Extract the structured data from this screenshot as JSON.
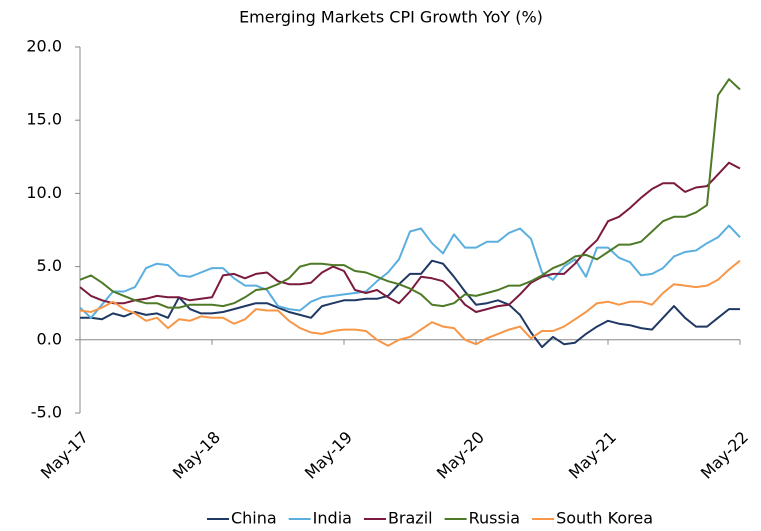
{
  "chart_data": {
    "type": "line",
    "title": "Emerging Markets CPI Growth YoY (%)",
    "categories": [
      "May-17",
      null,
      null,
      null,
      null,
      null,
      null,
      null,
      null,
      null,
      null,
      null,
      "May-18",
      null,
      null,
      null,
      null,
      null,
      null,
      null,
      null,
      null,
      null,
      null,
      "May-19",
      null,
      null,
      null,
      null,
      null,
      null,
      null,
      null,
      null,
      null,
      null,
      "May-20",
      null,
      null,
      null,
      null,
      null,
      null,
      null,
      null,
      null,
      null,
      null,
      "May-21",
      null,
      null,
      null,
      null,
      null,
      null,
      null,
      null,
      null,
      null,
      null,
      "May-22"
    ],
    "series": [
      {
        "name": "China",
        "color": "#1f3864",
        "values": [
          1.5,
          1.5,
          1.4,
          1.8,
          1.6,
          1.9,
          1.7,
          1.8,
          1.5,
          2.9,
          2.1,
          1.8,
          1.8,
          1.9,
          2.1,
          2.3,
          2.5,
          2.5,
          2.2,
          1.9,
          1.7,
          1.5,
          2.3,
          2.5,
          2.7,
          2.7,
          2.8,
          2.8,
          3.0,
          3.8,
          4.5,
          4.5,
          5.4,
          5.2,
          4.3,
          3.3,
          2.4,
          2.5,
          2.7,
          2.4,
          1.7,
          0.5,
          -0.5,
          0.2,
          -0.3,
          -0.2,
          0.4,
          0.9,
          1.3,
          1.1,
          1.0,
          0.8,
          0.7,
          1.5,
          2.3,
          1.5,
          0.9,
          0.9,
          1.5,
          2.1,
          2.1
        ]
      },
      {
        "name": "India",
        "color": "#5bafe0",
        "values": [
          2.2,
          1.5,
          2.4,
          3.3,
          3.3,
          3.6,
          4.9,
          5.2,
          5.1,
          4.4,
          4.3,
          4.6,
          4.9,
          4.9,
          4.2,
          3.7,
          3.7,
          3.4,
          2.3,
          2.1,
          2.0,
          2.6,
          2.9,
          3.0,
          3.1,
          3.2,
          3.3,
          4.0,
          4.6,
          5.5,
          7.4,
          7.6,
          6.6,
          5.9,
          7.2,
          6.3,
          6.3,
          6.7,
          6.7,
          7.3,
          7.6,
          6.9,
          4.6,
          4.1,
          5.0,
          5.5,
          4.3,
          6.3,
          6.3,
          5.6,
          5.3,
          4.4,
          4.5,
          4.9,
          5.7,
          6.0,
          6.1,
          6.6,
          7.0,
          7.8,
          7.0
        ]
      },
      {
        "name": "Brazil",
        "color": "#7b1a3e",
        "values": [
          3.6,
          3.0,
          2.7,
          2.5,
          2.5,
          2.7,
          2.8,
          3.0,
          2.9,
          2.9,
          2.7,
          2.8,
          2.9,
          4.4,
          4.5,
          4.2,
          4.5,
          4.6,
          4.0,
          3.8,
          3.8,
          3.9,
          4.6,
          5.0,
          4.7,
          3.4,
          3.2,
          3.4,
          2.9,
          2.5,
          3.3,
          4.3,
          4.2,
          4.0,
          3.3,
          2.4,
          1.9,
          2.1,
          2.3,
          2.4,
          3.1,
          3.9,
          4.3,
          4.5,
          4.5,
          5.2,
          6.1,
          6.8,
          8.1,
          8.4,
          9.0,
          9.7,
          10.3,
          10.7,
          10.7,
          10.1,
          10.4,
          10.5,
          11.3,
          12.1,
          11.7
        ]
      },
      {
        "name": "Russia",
        "color": "#4e7a27",
        "values": [
          4.1,
          4.4,
          3.9,
          3.3,
          3.0,
          2.7,
          2.5,
          2.5,
          2.2,
          2.2,
          2.4,
          2.4,
          2.4,
          2.3,
          2.5,
          2.9,
          3.4,
          3.5,
          3.8,
          4.2,
          5.0,
          5.2,
          5.2,
          5.1,
          5.1,
          4.7,
          4.6,
          4.3,
          4.0,
          3.8,
          3.5,
          3.1,
          2.4,
          2.3,
          2.5,
          3.1,
          3.0,
          3.2,
          3.4,
          3.7,
          3.7,
          4.0,
          4.4,
          4.9,
          5.2,
          5.7,
          5.8,
          5.5,
          6.0,
          6.5,
          6.5,
          6.7,
          7.4,
          8.1,
          8.4,
          8.4,
          8.7,
          9.2,
          16.7,
          17.8,
          17.1
        ]
      },
      {
        "name": "South Korea",
        "color": "#f79646",
        "values": [
          2.0,
          1.9,
          2.2,
          2.6,
          2.1,
          1.8,
          1.3,
          1.5,
          0.8,
          1.4,
          1.3,
          1.6,
          1.5,
          1.5,
          1.1,
          1.4,
          2.1,
          2.0,
          2.0,
          1.3,
          0.8,
          0.5,
          0.4,
          0.6,
          0.7,
          0.7,
          0.6,
          0.0,
          -0.4,
          0.0,
          0.2,
          0.7,
          1.2,
          0.9,
          0.8,
          0.0,
          -0.3,
          0.1,
          0.4,
          0.7,
          0.9,
          0.1,
          0.6,
          0.6,
          0.9,
          1.4,
          1.9,
          2.5,
          2.6,
          2.4,
          2.6,
          2.6,
          2.4,
          3.2,
          3.8,
          3.7,
          3.6,
          3.7,
          4.1,
          4.8,
          5.4
        ]
      }
    ],
    "ylim": [
      -5,
      20
    ],
    "yticks": [
      {
        "value": -5,
        "label": "-5.0"
      },
      {
        "value": 0,
        "label": "0.0"
      },
      {
        "value": 5,
        "label": "5.0"
      },
      {
        "value": 10,
        "label": "10.0"
      },
      {
        "value": 15,
        "label": "15.0"
      },
      {
        "value": 20,
        "label": "20.0"
      }
    ],
    "grid": false,
    "legend": "bottom"
  }
}
